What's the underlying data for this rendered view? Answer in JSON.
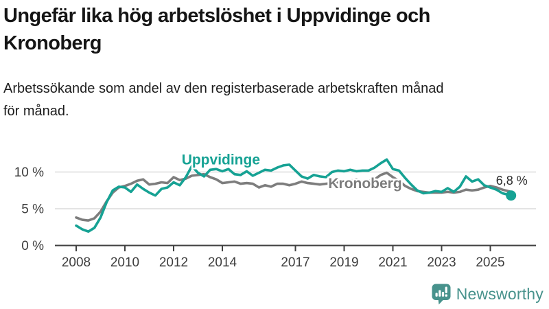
{
  "header": {
    "title": "Ungefär lika hög arbetslöshet i Uppvidinge och\nKronoberg",
    "subtitle": "Arbetssökande som andel av den registerbaserade arbetskraften månad\nför månad."
  },
  "logo": {
    "text": "Newsworthy",
    "icon": "newsworthy-speech-bubble-bar-chart-icon",
    "color": "#47928C"
  },
  "chart_data": {
    "type": "line",
    "title": "Ungefär lika hög arbetslöshet i Uppvidinge och Kronoberg",
    "xlabel": "",
    "ylabel": "",
    "x_unit": "decimal_year",
    "xlim": [
      2007.9,
      2026.0
    ],
    "ylim": [
      0,
      13
    ],
    "grid": "horizontal",
    "legend": "inline-labels",
    "y_ticks": [
      {
        "value": 0,
        "label": "0 %"
      },
      {
        "value": 5,
        "label": "5 %"
      },
      {
        "value": 10,
        "label": "10 %"
      }
    ],
    "x_ticks": [
      2008,
      2010,
      2012,
      2014,
      2017,
      2019,
      2021,
      2023,
      2025
    ],
    "x": [
      2008.0,
      2008.25,
      2008.5,
      2008.75,
      2009.0,
      2009.25,
      2009.5,
      2009.75,
      2010.0,
      2010.25,
      2010.5,
      2010.75,
      2011.0,
      2011.25,
      2011.5,
      2011.75,
      2012.0,
      2012.25,
      2012.5,
      2012.75,
      2013.0,
      2013.25,
      2013.5,
      2013.75,
      2014.0,
      2014.25,
      2014.5,
      2014.75,
      2015.0,
      2015.25,
      2015.5,
      2015.75,
      2016.0,
      2016.25,
      2016.5,
      2016.75,
      2017.0,
      2017.25,
      2017.5,
      2017.75,
      2018.0,
      2018.25,
      2018.5,
      2018.75,
      2019.0,
      2019.25,
      2019.5,
      2019.75,
      2020.0,
      2020.25,
      2020.5,
      2020.75,
      2021.0,
      2021.25,
      2021.5,
      2021.75,
      2022.0,
      2022.25,
      2022.5,
      2022.75,
      2023.0,
      2023.25,
      2023.5,
      2023.75,
      2024.0,
      2024.25,
      2024.5,
      2024.75,
      2025.0,
      2025.25,
      2025.5,
      2025.85
    ],
    "series": [
      {
        "name": "Uppvidinge",
        "color": "#16A294",
        "label_anchor": {
          "year": 2013.94,
          "value": 11.68
        },
        "values": [
          2.7,
          2.2,
          1.9,
          2.4,
          3.8,
          5.9,
          7.5,
          8.0,
          7.9,
          7.3,
          8.3,
          7.7,
          7.2,
          6.8,
          7.7,
          7.9,
          8.6,
          8.2,
          9.3,
          10.8,
          9.9,
          9.4,
          10.3,
          10.4,
          10.1,
          10.4,
          9.7,
          9.6,
          10.1,
          9.5,
          9.9,
          10.3,
          10.2,
          10.6,
          10.9,
          11.0,
          10.2,
          9.4,
          9.1,
          9.6,
          9.4,
          9.3,
          10.0,
          10.2,
          10.1,
          10.3,
          10.1,
          10.2,
          10.2,
          10.6,
          11.2,
          11.7,
          10.4,
          10.2,
          9.2,
          8.3,
          7.5,
          7.1,
          7.2,
          7.4,
          7.3,
          7.8,
          7.3,
          8.0,
          9.4,
          8.7,
          9.0,
          8.2,
          7.9,
          7.6,
          7.1,
          6.8
        ]
      },
      {
        "name": "Kronoberg",
        "color": "#7D7D7D",
        "label_anchor": {
          "year": 2019.86,
          "value": 8.46
        },
        "values": [
          3.8,
          3.5,
          3.4,
          3.7,
          4.6,
          6.0,
          7.2,
          7.9,
          8.1,
          8.4,
          8.8,
          9.0,
          8.3,
          8.4,
          8.6,
          8.5,
          9.3,
          8.9,
          9.1,
          9.5,
          9.6,
          9.7,
          9.3,
          9.0,
          8.5,
          8.6,
          8.7,
          8.4,
          8.5,
          8.4,
          7.9,
          8.2,
          8.0,
          8.4,
          8.4,
          8.2,
          8.4,
          8.7,
          8.5,
          8.4,
          8.3,
          8.4,
          8.5,
          8.6,
          8.6,
          8.8,
          9.0,
          8.7,
          8.8,
          9.0,
          9.6,
          9.9,
          9.3,
          8.8,
          8.1,
          7.7,
          7.4,
          7.3,
          7.2,
          7.2,
          7.2,
          7.3,
          7.2,
          7.3,
          7.6,
          7.5,
          7.6,
          7.9,
          8.1,
          7.9,
          7.6,
          7.3
        ]
      }
    ],
    "end_dot": {
      "series": "Uppvidinge"
    },
    "end_annotation": {
      "text": "6,8 %",
      "series": "Uppvidinge",
      "year": 2025.88,
      "value": 8.85
    }
  }
}
